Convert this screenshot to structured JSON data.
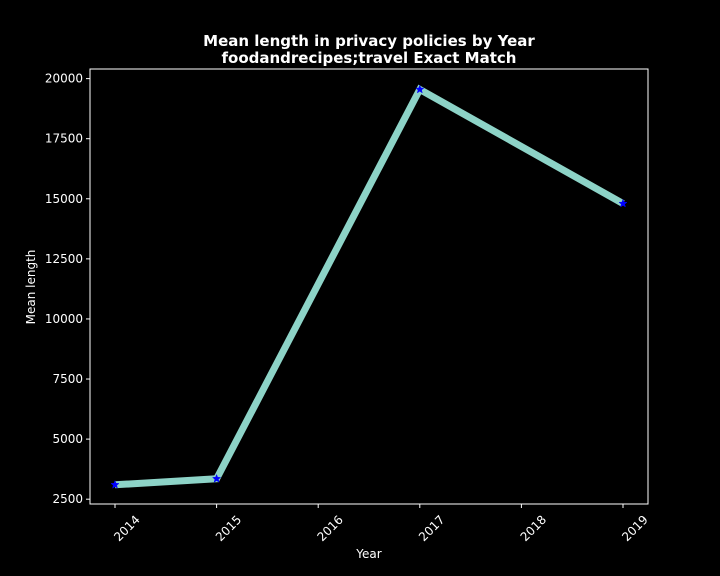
{
  "chart_data": {
    "type": "line",
    "title": "Mean length in privacy policies by Year",
    "subtitle": "foodandrecipes;travel Exact Match",
    "xlabel": "Year",
    "ylabel": "Mean length",
    "x": [
      "2014",
      "2015",
      "2016",
      "2017",
      "2018",
      "2019"
    ],
    "x_ticks": [
      "2014",
      "2015",
      "2016",
      "2017",
      "2018",
      "2019"
    ],
    "y_ticks": [
      2500,
      5000,
      7500,
      10000,
      12500,
      15000,
      17500,
      20000
    ],
    "ylim": [
      2300,
      20400
    ],
    "grid": false,
    "legend": "none",
    "series": [
      {
        "points": [
          {
            "x": "2014",
            "y": 3100
          },
          {
            "x": "2015",
            "y": 3350
          },
          {
            "x": "2017",
            "y": 19550
          },
          {
            "x": "2019",
            "y": 14800
          }
        ],
        "line_color": "#8dd3c7",
        "marker": "star",
        "marker_color": "#0000ff"
      }
    ],
    "colors": {
      "background": "#000000",
      "axes": "#ffffff",
      "text": "#ffffff"
    }
  }
}
